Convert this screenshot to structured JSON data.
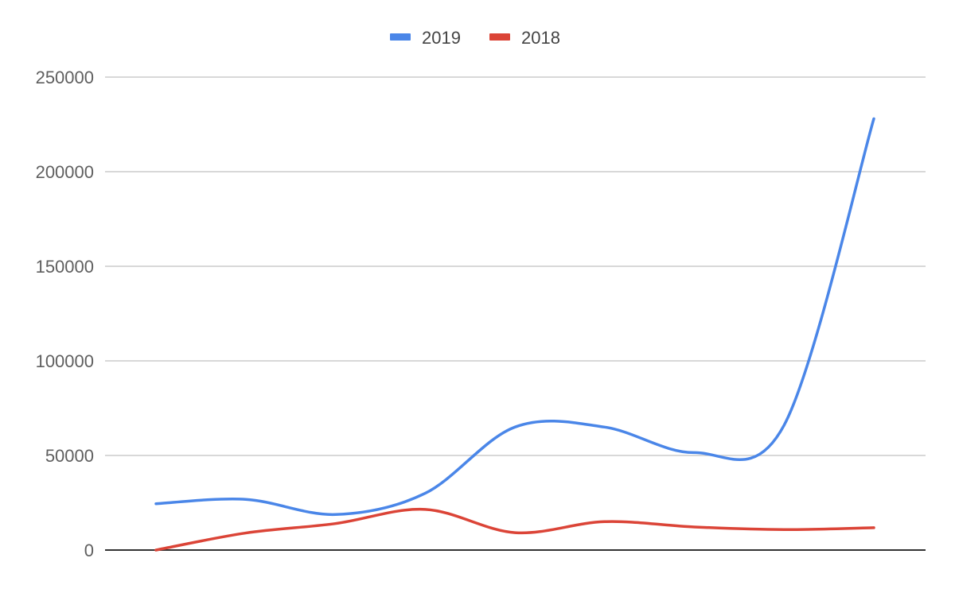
{
  "chart_data": {
    "type": "line",
    "x": [
      1,
      2,
      3,
      4,
      5,
      6,
      7,
      8,
      9
    ],
    "ylim": [
      0,
      250000
    ],
    "yticks": [
      "0",
      "50000",
      "100000",
      "150000",
      "200000",
      "250000"
    ],
    "grid": true,
    "legend_position": "top-center",
    "smooth": true,
    "series": [
      {
        "name": "2019",
        "color": "#4a86e8",
        "values": [
          24500,
          26800,
          18800,
          30000,
          65000,
          65000,
          51500,
          66000,
          228000
        ]
      },
      {
        "name": "2018",
        "color": "#db4437",
        "values": [
          0,
          9000,
          14000,
          21500,
          9200,
          15000,
          12200,
          10800,
          11800
        ]
      }
    ]
  }
}
